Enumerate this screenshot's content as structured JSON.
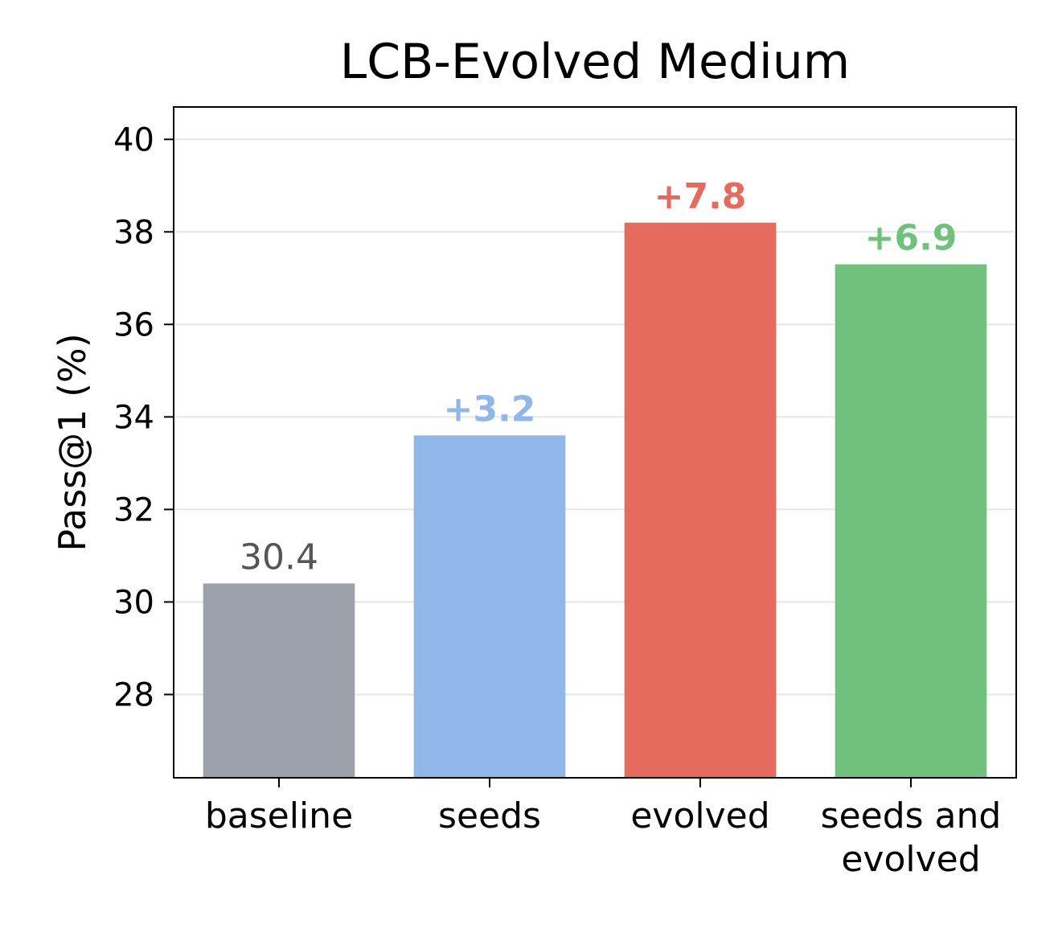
{
  "chart_data": {
    "type": "bar",
    "title": "LCB-Evolved Medium",
    "ylabel": "Pass@1 (%)",
    "ylim": [
      26.2,
      40.7
    ],
    "yticks": [
      28,
      30,
      32,
      34,
      36,
      38,
      40
    ],
    "grid": true,
    "categories": [
      [
        "baseline"
      ],
      [
        "seeds"
      ],
      [
        "evolved"
      ],
      [
        "seeds and",
        "evolved"
      ]
    ],
    "values": [
      30.4,
      33.6,
      38.2,
      37.3
    ],
    "data_labels": [
      "30.4",
      "+3.2",
      "+7.8",
      "+6.9"
    ],
    "label_bold": [
      false,
      true,
      true,
      true
    ],
    "colors": [
      "#9ca0a8",
      "#8fb7e8",
      "#e46b5d",
      "#70c17e"
    ],
    "label_colors": [
      "#555555",
      "#8fb7e8",
      "#e46b5d",
      "#70c17e"
    ]
  }
}
